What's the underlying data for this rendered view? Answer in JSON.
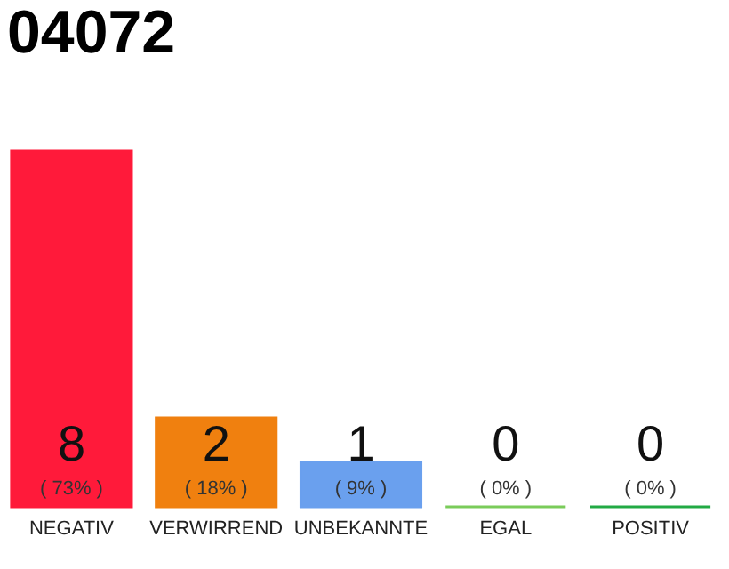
{
  "chart_data": {
    "type": "bar",
    "title": "04072",
    "categories": [
      "NEGATIV",
      "VERWIRREND",
      "UNBEKANNTE",
      "EGAL",
      "POSITIV"
    ],
    "values": [
      8,
      2,
      1,
      0,
      0
    ],
    "colors": [
      "#ff1a3a",
      "#f0800f",
      "#6aa0ee",
      "#7acc5a",
      "#22aa44"
    ],
    "data_labels": true,
    "annotations": [
      "( 73% )",
      "( 18% )",
      "( 9% )",
      "( 0% )",
      "( 0% )"
    ]
  }
}
